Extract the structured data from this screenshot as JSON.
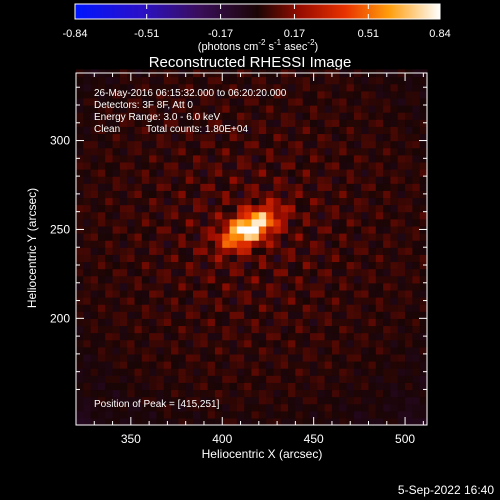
{
  "colorbar": {
    "ticks": [
      "-0.84",
      "-0.51",
      "-0.17",
      "0.17",
      "0.51",
      "0.84"
    ],
    "tick_values": [
      -0.84,
      -0.51,
      -0.17,
      0.17,
      0.51,
      0.84
    ],
    "range": [
      -0.84,
      0.84
    ],
    "unit_prefix": "(photons cm",
    "unit_exp1": "-2",
    "unit_mid": " s",
    "unit_exp2": "-1",
    "unit_mid2": " asec",
    "unit_exp3": "-2",
    "unit_suffix": ")"
  },
  "annotations": {
    "time_range": "26-May-2016 06:15:32.000 to 06:20:20.000",
    "detectors": "Detectors: 3F 8F, Att 0",
    "energy": "Energy Range: 3.0 - 6.0 keV",
    "method": "Clean",
    "counts": "Total counts: 1.80E+04",
    "peak": "Position of Peak = [415,251]"
  },
  "footer": {
    "date": "5-Sep-2022 16:40"
  },
  "colors": {
    "background": "#000000",
    "text": "#ffffff"
  },
  "chart_data": {
    "type": "heatmap",
    "title": "Reconstructed RHESSI Image",
    "xlabel": "Heliocentric X (arcsec)",
    "ylabel": "Heliocentric Y (arcsec)",
    "xlim": [
      320,
      512
    ],
    "ylim": [
      140,
      338
    ],
    "x_ticks": [
      350,
      400,
      450,
      500
    ],
    "y_ticks": [
      200,
      250,
      300
    ],
    "colormap": "red-temperature with negative blue-violet",
    "peak": {
      "x": 415,
      "y": 251,
      "value": 0.84
    },
    "source_orientation": "elongated, tilted ~30 degrees upward to the right",
    "pixel_size_arcsec": 4
  }
}
